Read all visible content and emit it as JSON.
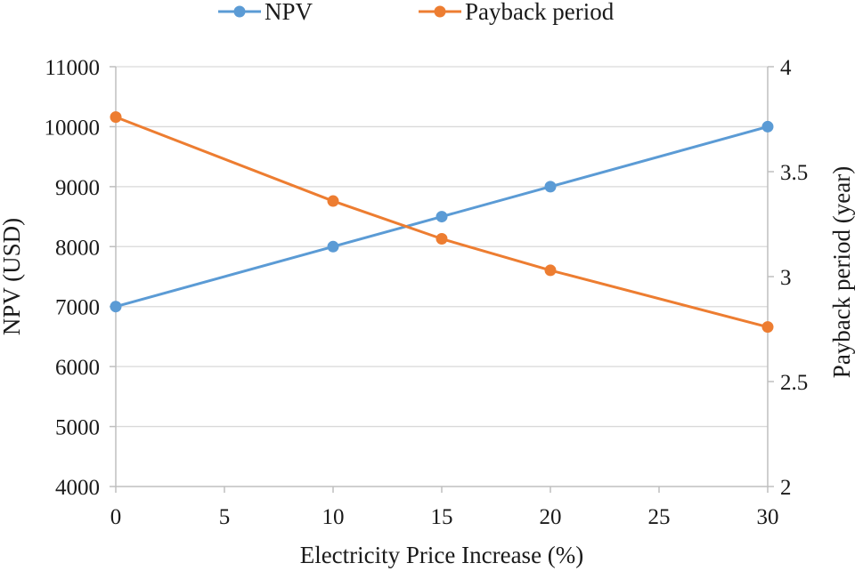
{
  "chart_data": {
    "type": "line",
    "x": [
      0,
      10,
      15,
      20,
      30
    ],
    "xlabel": "Electricity Price Increase (%)",
    "xlim": [
      0,
      30
    ],
    "x_ticks": [
      "0",
      "5",
      "10",
      "15",
      "20",
      "25",
      "30"
    ],
    "ylabel_left": "NPV (USD)",
    "ylim_left": [
      4000,
      11000
    ],
    "y_ticks_left": [
      "4000",
      "5000",
      "6000",
      "7000",
      "8000",
      "9000",
      "10000",
      "11000"
    ],
    "ylabel_right": "Payback period (year)",
    "ylim_right": [
      2,
      4
    ],
    "y_ticks_right": [
      "2",
      "2.5",
      "3",
      "3.5",
      "4"
    ],
    "grid": true,
    "legend_position": "top-center",
    "series": [
      {
        "name": "NPV",
        "axis": "left",
        "color": "#5B9BD5",
        "values": [
          7000,
          8000,
          8500,
          9000,
          10000
        ]
      },
      {
        "name": "Payback period",
        "axis": "right",
        "color": "#ED7D31",
        "values": [
          3.76,
          3.36,
          3.18,
          3.03,
          2.76
        ]
      }
    ]
  }
}
